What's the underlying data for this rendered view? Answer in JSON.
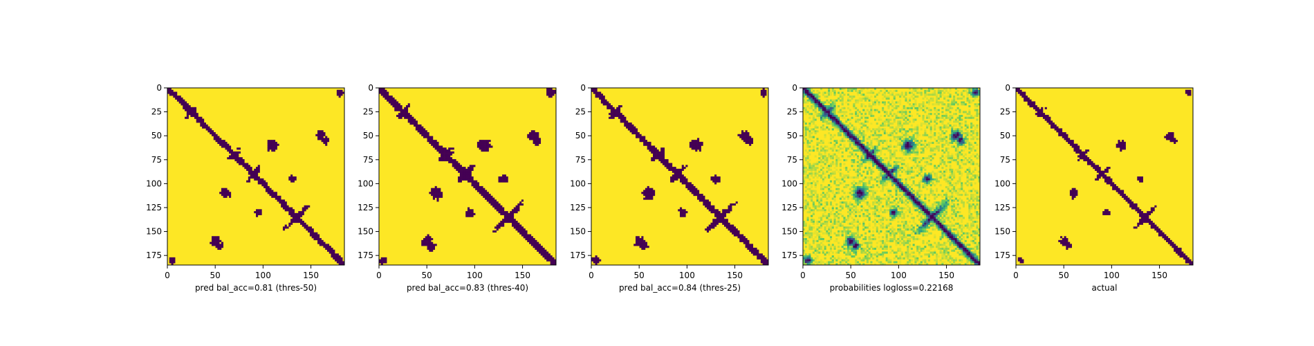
{
  "chart_data": [
    {
      "type": "heatmap",
      "xlabel": "pred bal_acc=0.81 (thres-50)",
      "xticks": [
        0,
        50,
        100,
        150
      ],
      "yticks": [
        0,
        25,
        50,
        75,
        100,
        125,
        150,
        175
      ],
      "xlim": [
        0,
        185
      ],
      "ylim": [
        185,
        0
      ],
      "binary": true,
      "noise_threshold": 0.88,
      "blob_threshold": 0.42
    },
    {
      "type": "heatmap",
      "xlabel": "pred bal_acc=0.83 (thres-40)",
      "xticks": [
        0,
        50,
        100,
        150
      ],
      "yticks": [
        0,
        25,
        50,
        75,
        100,
        125,
        150,
        175
      ],
      "xlim": [
        0,
        185
      ],
      "ylim": [
        185,
        0
      ],
      "binary": true,
      "noise_threshold": 0.74,
      "blob_threshold": 0.3
    },
    {
      "type": "heatmap",
      "xlabel": "pred bal_acc=0.84 (thres-25)",
      "xticks": [
        0,
        50,
        100,
        150
      ],
      "yticks": [
        0,
        25,
        50,
        75,
        100,
        125,
        150,
        175
      ],
      "xlim": [
        0,
        185
      ],
      "ylim": [
        185,
        0
      ],
      "binary": true,
      "noise_threshold": 0.8,
      "blob_threshold": 0.34
    },
    {
      "type": "heatmap",
      "xlabel": "probabilities logloss=0.22168",
      "xticks": [
        0,
        50,
        100,
        150
      ],
      "yticks": [
        0,
        25,
        50,
        75,
        100,
        125,
        150,
        175
      ],
      "xlim": [
        0,
        185
      ],
      "ylim": [
        185,
        0
      ],
      "binary": false,
      "noise_threshold": 0.8,
      "blob_threshold": 0.34
    },
    {
      "type": "heatmap",
      "xlabel": "actual",
      "xticks": [
        0,
        50,
        100,
        150
      ],
      "yticks": [
        0,
        25,
        50,
        75,
        100,
        125,
        150,
        175
      ],
      "xlim": [
        0,
        185
      ],
      "ylim": [
        185,
        0
      ],
      "binary": true,
      "noise_threshold": 0.95,
      "blob_threshold": 0.5
    }
  ],
  "colors": {
    "contact": "#440154",
    "no_contact": "#fde725",
    "viridis": [
      "#440154",
      "#3b528b",
      "#21918c",
      "#5ec962",
      "#fde725"
    ]
  },
  "contact_regions": [
    {
      "x": 0,
      "y": 0,
      "len": 185,
      "type": "diagonal"
    },
    {
      "x": 25,
      "y": 25,
      "r": 8,
      "type": "cross"
    },
    {
      "x": 70,
      "y": 70,
      "r": 8,
      "type": "cross"
    },
    {
      "x": 90,
      "y": 90,
      "r": 10,
      "type": "cross"
    },
    {
      "x": 135,
      "y": 135,
      "r": 18,
      "type": "cross"
    },
    {
      "x": 110,
      "y": 60,
      "r": 6,
      "type": "blob"
    },
    {
      "x": 60,
      "y": 110,
      "r": 6,
      "type": "blob"
    },
    {
      "x": 160,
      "y": 50,
      "r": 5,
      "type": "blob"
    },
    {
      "x": 50,
      "y": 160,
      "r": 5,
      "type": "blob"
    },
    {
      "x": 95,
      "y": 130,
      "r": 4,
      "type": "blob"
    },
    {
      "x": 130,
      "y": 95,
      "r": 4,
      "type": "blob"
    },
    {
      "x": 55,
      "y": 165,
      "r": 4,
      "type": "blob"
    },
    {
      "x": 165,
      "y": 55,
      "r": 4,
      "type": "blob"
    },
    {
      "x": 5,
      "y": 180,
      "r": 4,
      "type": "blob"
    },
    {
      "x": 180,
      "y": 5,
      "r": 4,
      "type": "blob"
    }
  ]
}
